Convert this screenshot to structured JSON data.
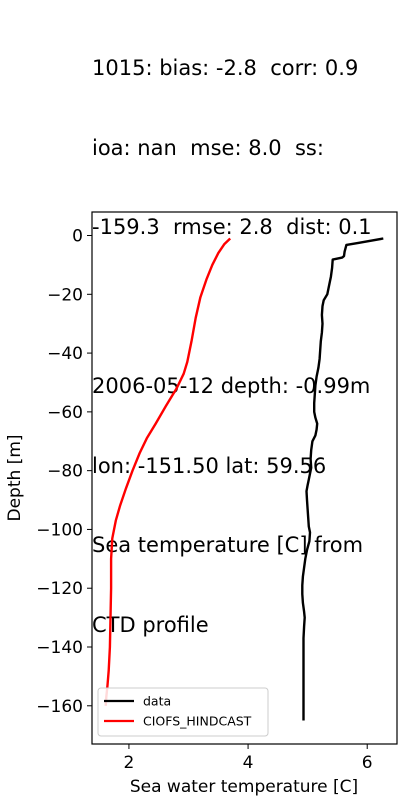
{
  "title_lines": [
    "1015: bias: -2.8  corr: 0.9",
    "ioa: nan  mse: 8.0  ss:",
    "-159.3  rmse: 2.8  dist: 0.1",
    "",
    "2006-05-12 depth: -0.99m",
    "lon: -151.50 lat: 59.56",
    "Sea temperature [C] from",
    "CTD profile"
  ],
  "chart_data": {
    "type": "line",
    "title": "1015: bias: -2.8  corr: 0.9 ioa: nan  mse: 8.0  ss: -159.3  rmse: 2.8  dist: 0.1 | 2006-05-12 depth: -0.99m lon: -151.50 lat: 59.56 Sea temperature [C] from CTD profile",
    "xlabel": "Sea water temperature [C]",
    "ylabel": "Depth [m]",
    "xlim": [
      1.38,
      6.5
    ],
    "ylim": [
      -173,
      8
    ],
    "xticks": [
      2,
      4,
      6
    ],
    "yticks": [
      0,
      -20,
      -40,
      -60,
      -80,
      -100,
      -120,
      -140,
      -160
    ],
    "xtick_labels": [
      "2",
      "4",
      "6"
    ],
    "ytick_labels": [
      "0",
      "−20",
      "−40",
      "−60",
      "−80",
      "−100",
      "−120",
      "−140",
      "−160"
    ],
    "legend_position": "lower-left",
    "series": [
      {
        "name": "data",
        "color": "#000000",
        "points": [
          [
            6.27,
            -1
          ],
          [
            5.85,
            -2.5
          ],
          [
            5.65,
            -3.2
          ],
          [
            5.62,
            -5.5
          ],
          [
            5.61,
            -7
          ],
          [
            5.58,
            -7.5
          ],
          [
            5.42,
            -8.2
          ],
          [
            5.41,
            -11
          ],
          [
            5.39,
            -14
          ],
          [
            5.37,
            -16
          ],
          [
            5.35,
            -18
          ],
          [
            5.33,
            -20
          ],
          [
            5.3,
            -21
          ],
          [
            5.27,
            -22
          ],
          [
            5.25,
            -24
          ],
          [
            5.24,
            -27
          ],
          [
            5.25,
            -30
          ],
          [
            5.24,
            -33
          ],
          [
            5.22,
            -36
          ],
          [
            5.21,
            -39
          ],
          [
            5.2,
            -42
          ],
          [
            5.18,
            -45
          ],
          [
            5.15,
            -48
          ],
          [
            5.13,
            -51
          ],
          [
            5.12,
            -54
          ],
          [
            5.11,
            -57
          ],
          [
            5.11,
            -60
          ],
          [
            5.13,
            -62
          ],
          [
            5.16,
            -64
          ],
          [
            5.15,
            -66
          ],
          [
            5.13,
            -68
          ],
          [
            5.08,
            -70
          ],
          [
            5.06,
            -73
          ],
          [
            5.05,
            -76
          ],
          [
            5.06,
            -79
          ],
          [
            5.04,
            -81
          ],
          [
            5.02,
            -83
          ],
          [
            5.0,
            -85
          ],
          [
            4.98,
            -87
          ],
          [
            4.99,
            -90
          ],
          [
            5.0,
            -93
          ],
          [
            5.01,
            -96
          ],
          [
            5.02,
            -99
          ],
          [
            5.04,
            -101
          ],
          [
            5.03,
            -104
          ],
          [
            4.99,
            -107
          ],
          [
            4.96,
            -110
          ],
          [
            4.94,
            -113
          ],
          [
            4.92,
            -116
          ],
          [
            4.91,
            -119
          ],
          [
            4.91,
            -122
          ],
          [
            4.92,
            -125
          ],
          [
            4.94,
            -128
          ],
          [
            4.95,
            -130
          ],
          [
            4.94,
            -133
          ],
          [
            4.93,
            -137
          ],
          [
            4.93,
            -142
          ],
          [
            4.93,
            -147
          ],
          [
            4.93,
            -152
          ],
          [
            4.93,
            -157
          ],
          [
            4.93,
            -161
          ],
          [
            4.93,
            -165
          ]
        ]
      },
      {
        "name": "CIOFS_HINDCAST",
        "color": "#ff0000",
        "points": [
          [
            3.7,
            -1
          ],
          [
            3.6,
            -3
          ],
          [
            3.5,
            -6
          ],
          [
            3.4,
            -10
          ],
          [
            3.3,
            -15
          ],
          [
            3.2,
            -21
          ],
          [
            3.12,
            -28
          ],
          [
            3.05,
            -36
          ],
          [
            2.98,
            -43
          ],
          [
            2.92,
            -47
          ],
          [
            2.8,
            -52
          ],
          [
            2.62,
            -58
          ],
          [
            2.45,
            -64
          ],
          [
            2.3,
            -69
          ],
          [
            2.18,
            -74
          ],
          [
            2.06,
            -80
          ],
          [
            1.95,
            -86
          ],
          [
            1.85,
            -92
          ],
          [
            1.78,
            -97
          ],
          [
            1.72,
            -103
          ],
          [
            1.7,
            -110
          ],
          [
            1.7,
            -120
          ],
          [
            1.69,
            -130
          ],
          [
            1.68,
            -140
          ],
          [
            1.66,
            -148
          ],
          [
            1.64,
            -153
          ],
          [
            1.62,
            -157
          ],
          [
            1.61,
            -160
          ]
        ]
      }
    ]
  }
}
